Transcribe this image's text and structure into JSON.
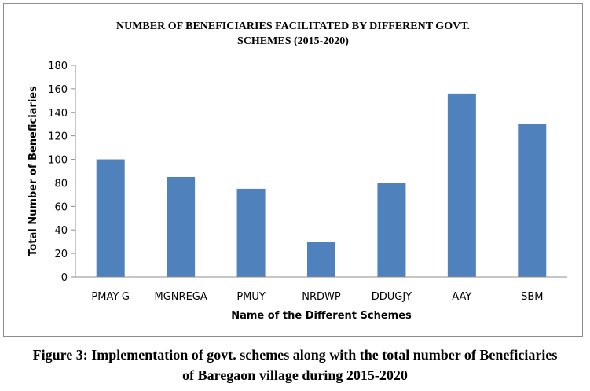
{
  "chart_data": {
    "type": "bar",
    "title_line1": "NUMBER OF BENEFICIARIES FACILITATED BY DIFFERENT GOVT.",
    "title_line2": "SCHEMES (2015-2020)",
    "xlabel": "Name of the Different Schemes",
    "ylabel": "Total Number of Beneficiaries",
    "categories": [
      "PMAY-G",
      "MGNREGA",
      "PMUY",
      "NRDWP",
      "DDUGJY",
      "AAY",
      "SBM"
    ],
    "values": [
      100,
      85,
      75,
      30,
      80,
      156,
      130
    ],
    "ylim": [
      0,
      180
    ],
    "yticks": [
      0,
      20,
      40,
      60,
      80,
      100,
      120,
      140,
      160,
      180
    ],
    "grid": false,
    "legend": "none",
    "bar_color": "#4f81bd"
  },
  "caption": {
    "line1": "Figure 3: Implementation of govt. schemes along with the total number of Beneficiaries",
    "line2": "of Baregaon village during 2015-2020"
  }
}
